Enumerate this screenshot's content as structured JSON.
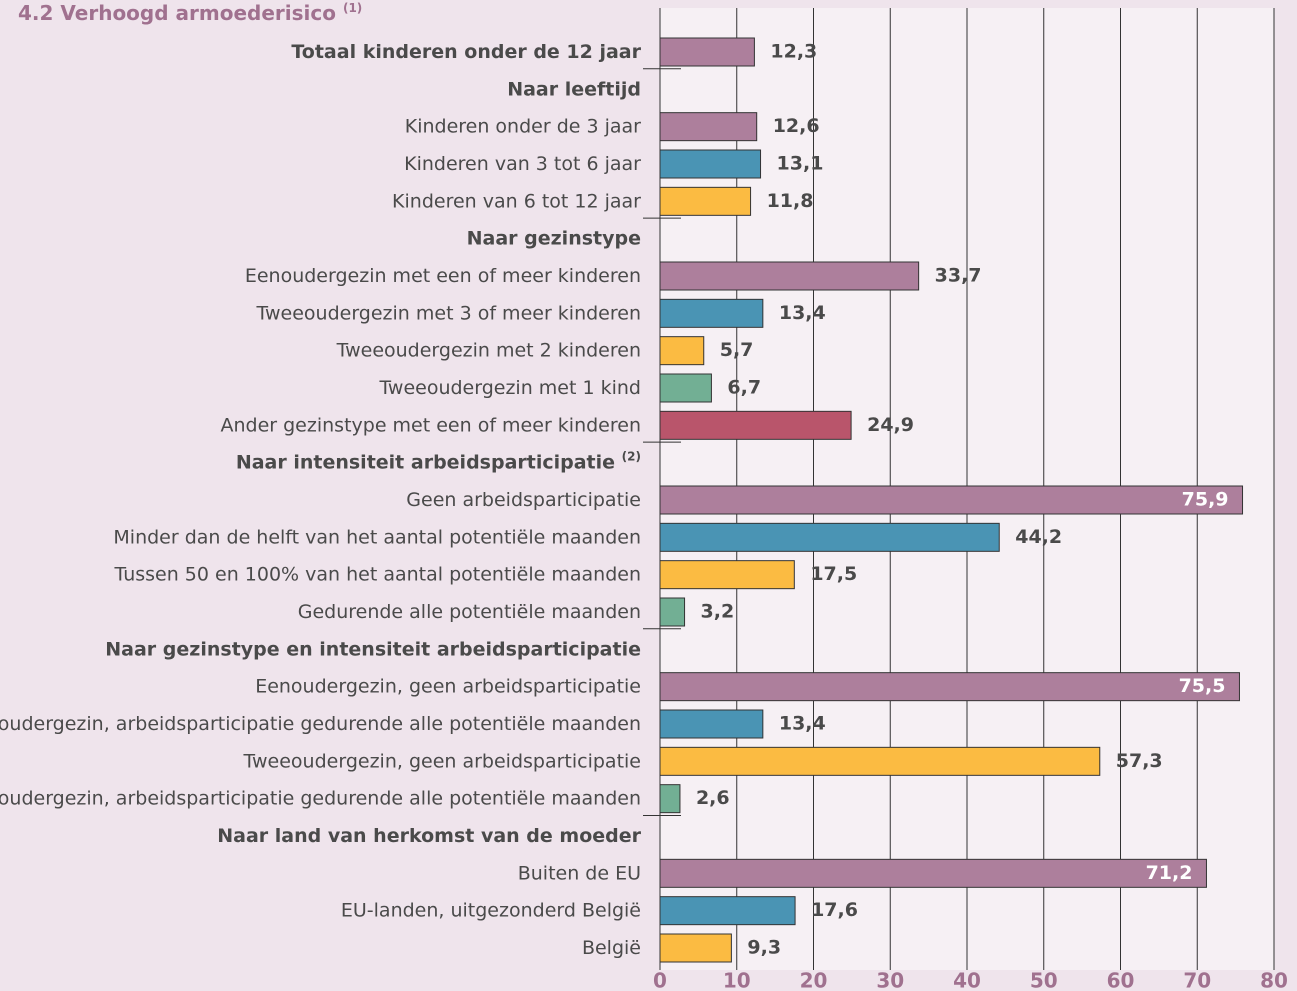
{
  "chart_data": {
    "type": "bar",
    "orientation": "horizontal",
    "title": "4.2 Verhoogd armoederisico",
    "title_sup": "(1)",
    "categories": [
      "Totaal kinderen onder de 12 jaar",
      "Naar leeftijd",
      "Kinderen onder de 3 jaar",
      "Kinderen van 3 tot 6 jaar",
      "Kinderen van 6 tot 12 jaar",
      "Naar gezinstype",
      "Eenoudergezin met een of meer kinderen",
      "Tweeoudergezin met 3 of meer kinderen",
      "Tweeoudergezin met 2 kinderen",
      "Tweeoudergezin met 1 kind",
      "Ander gezinstype met een of meer kinderen",
      "Naar intensiteit arbeidsparticipatie",
      "Geen arbeidsparticipatie",
      "Minder dan de helft van het aantal potentiële maanden",
      "Tussen 50 en 100% van het aantal potentiële maanden",
      "Gedurende alle potentiële maanden",
      "Naar gezinstype en intensiteit arbeidsparticipatie",
      "Eenoudergezin, geen arbeidsparticipatie",
      "Eenoudergezin, arbeidsparticipatie gedurende alle potentiële maanden",
      "Tweeoudergezin, geen arbeidsparticipatie",
      "Tweeoudergezin, arbeidsparticipatie gedurende alle potentiële maanden",
      "Naar land van herkomst van de moeder",
      "Buiten de EU",
      "EU-landen, uitgezonderd België",
      "België"
    ],
    "category_sups": [
      null,
      null,
      null,
      null,
      null,
      null,
      null,
      null,
      null,
      null,
      null,
      "(2)",
      null,
      null,
      null,
      null,
      null,
      null,
      null,
      null,
      null,
      null,
      null,
      null,
      null
    ],
    "bold": [
      true,
      true,
      false,
      false,
      false,
      true,
      false,
      false,
      false,
      false,
      false,
      true,
      false,
      false,
      false,
      false,
      true,
      false,
      false,
      false,
      false,
      true,
      false,
      false,
      false
    ],
    "values": [
      12.3,
      null,
      12.6,
      13.1,
      11.8,
      null,
      33.7,
      13.4,
      5.7,
      6.7,
      24.9,
      null,
      75.9,
      44.2,
      17.5,
      3.2,
      null,
      75.5,
      13.4,
      57.3,
      2.6,
      null,
      71.2,
      17.6,
      9.3
    ],
    "value_labels": [
      "12,3",
      null,
      "12,6",
      "13,1",
      "11,8",
      null,
      "33,7",
      "13,4",
      "5,7",
      "6,7",
      "24,9",
      null,
      "75,9",
      "44,2",
      "17,5",
      "3,2",
      null,
      "75,5",
      "13,4",
      "57,3",
      "2,6",
      null,
      "71,2",
      "17,6",
      "9,3"
    ],
    "colors": [
      "#ad7f9c",
      null,
      "#ad7f9c",
      "#4a94b4",
      "#fbbb42",
      null,
      "#ad7f9c",
      "#4a94b4",
      "#fbbb42",
      "#72af94",
      "#b9556b",
      null,
      "#ad7f9c",
      "#4a94b4",
      "#fbbb42",
      "#72af94",
      null,
      "#ad7f9c",
      "#4a94b4",
      "#fbbb42",
      "#72af94",
      null,
      "#ad7f9c",
      "#4a94b4",
      "#fbbb42"
    ],
    "xlim": [
      0,
      80
    ],
    "xticks": [
      0,
      10,
      20,
      30,
      40,
      50,
      60,
      70,
      80
    ],
    "grid": true
  }
}
